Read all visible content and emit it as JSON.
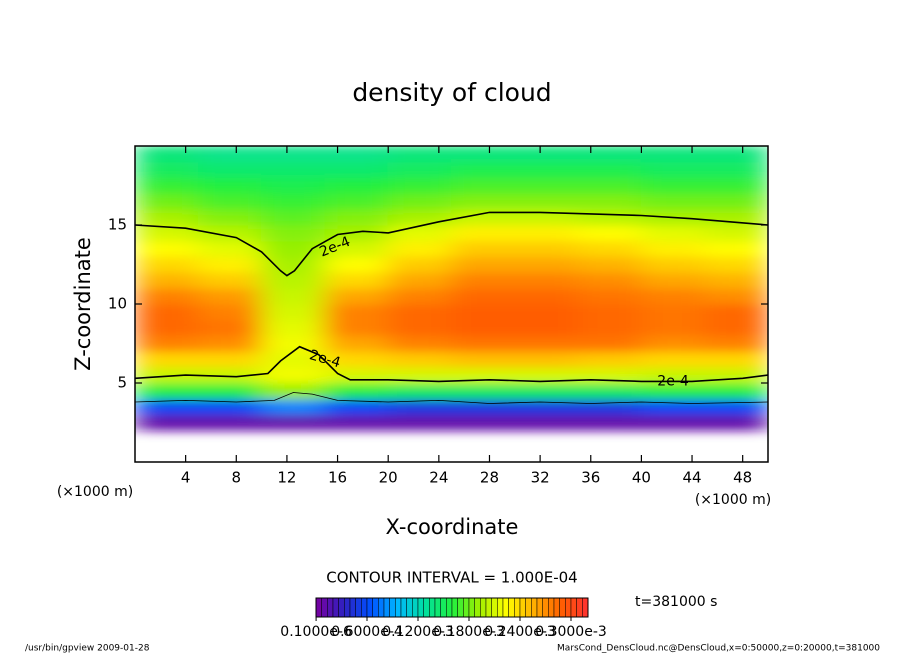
{
  "chart_data": {
    "type": "contour",
    "title": "density of cloud",
    "xlabel": "X-coordinate",
    "ylabel": "Z-coordinate",
    "x_unit": "(×1000 m)",
    "y_unit": "(×1000 m)",
    "xlim": [
      0,
      50
    ],
    "ylim": [
      0,
      20
    ],
    "xticks": [
      4,
      8,
      12,
      16,
      20,
      24,
      28,
      32,
      36,
      40,
      44,
      48
    ],
    "yticks": [
      5,
      10,
      15
    ],
    "field": {
      "x": [
        2.5,
        7.5,
        12.5,
        17.5,
        22.5,
        27.5,
        32.5,
        37.5,
        42.5,
        47.5
      ],
      "z": [
        0.5,
        1.5,
        2.5,
        3.5,
        4.5,
        5.5,
        6.5,
        7.5,
        8.5,
        9.5,
        10.5,
        11.5,
        12.5,
        13.5,
        14.5,
        15.5,
        16.5,
        17.5,
        18.5,
        19.5
      ],
      "values": [
        [
          null,
          null,
          null,
          null,
          null,
          null,
          null,
          null,
          null,
          null
        ],
        [
          null,
          null,
          null,
          null,
          null,
          null,
          null,
          null,
          null,
          null
        ],
        [
          1e-05,
          1e-05,
          1e-05,
          1e-05,
          1e-05,
          1e-05,
          1e-05,
          1e-05,
          1e-05,
          1e-05
        ],
        [
          6e-05,
          6e-05,
          8e-05,
          6e-05,
          5e-05,
          5e-05,
          5e-05,
          5e-05,
          6e-05,
          6e-05
        ],
        [
          0.00016,
          0.00016,
          0.00019,
          0.00016,
          0.00015,
          0.00015,
          0.00015,
          0.00015,
          0.00016,
          0.00016
        ],
        [
          0.000205,
          0.000205,
          0.00022,
          0.00021,
          0.00021,
          0.00021,
          0.00021,
          0.00021,
          0.000205,
          0.000205
        ],
        [
          0.00024,
          0.00024,
          0.000215,
          0.00024,
          0.000245,
          0.00025,
          0.00025,
          0.000245,
          0.00024,
          0.00024
        ],
        [
          0.000275,
          0.00027,
          0.00022,
          0.00026,
          0.000275,
          0.00028,
          0.00028,
          0.00028,
          0.00027,
          0.000275
        ],
        [
          0.000285,
          0.00028,
          0.000215,
          0.000275,
          0.000285,
          0.00029,
          0.00029,
          0.000285,
          0.00028,
          0.000285
        ],
        [
          0.000285,
          0.000275,
          0.00021,
          0.000275,
          0.000285,
          0.00029,
          0.00029,
          0.000285,
          0.00028,
          0.000285
        ],
        [
          0.000275,
          0.000265,
          0.000205,
          0.00026,
          0.000275,
          0.000285,
          0.000285,
          0.00028,
          0.000275,
          0.00027
        ],
        [
          0.000255,
          0.000245,
          0.0002,
          0.00024,
          0.00026,
          0.000275,
          0.000275,
          0.00027,
          0.00026,
          0.000255
        ],
        [
          0.00024,
          0.00023,
          0.000195,
          0.000225,
          0.000245,
          0.00026,
          0.00026,
          0.000255,
          0.000245,
          0.00024
        ],
        [
          0.000225,
          0.000215,
          0.00019,
          0.00021,
          0.00023,
          0.000245,
          0.000245,
          0.00024,
          0.00023,
          0.000225
        ],
        [
          0.00021,
          0.0002,
          0.000185,
          0.000195,
          0.000215,
          0.00023,
          0.00023,
          0.000225,
          0.000215,
          0.00021
        ],
        [
          0.000195,
          0.000185,
          0.000175,
          0.000185,
          0.000195,
          0.000205,
          0.000205,
          0.0002,
          0.000195,
          0.000195
        ],
        [
          0.00018,
          0.00017,
          0.000165,
          0.00017,
          0.00018,
          0.000185,
          0.000185,
          0.000185,
          0.00018,
          0.00018
        ],
        [
          0.000165,
          0.00016,
          0.000155,
          0.00016,
          0.000165,
          0.00017,
          0.00017,
          0.00017,
          0.000165,
          0.000165
        ],
        [
          0.00015,
          0.000145,
          0.000145,
          0.000145,
          0.00015,
          0.000155,
          0.000155,
          0.000155,
          0.00015,
          0.00015
        ],
        [
          0.00014,
          0.000135,
          0.000135,
          0.000135,
          0.00014,
          0.00014,
          0.00014,
          0.00014,
          0.00014,
          0.00014
        ]
      ]
    },
    "clim": [
      0,
      0.00032
    ],
    "colormap": [
      "#7a00a0",
      "#3020c0",
      "#0050ff",
      "#00b8ff",
      "#00e0a0",
      "#20f040",
      "#a0f000",
      "#ffff00",
      "#ffb000",
      "#ff6000",
      "#ff3030"
    ],
    "contours": [
      {
        "level": 0.0002,
        "x": [
          0,
          4,
          8,
          10,
          11.5,
          12,
          12.6,
          14,
          16,
          18,
          20,
          24,
          28,
          32,
          36,
          40,
          44,
          50
        ],
        "z": [
          15,
          14.8,
          14.2,
          13.3,
          12.1,
          11.8,
          12.1,
          13.5,
          14.4,
          14.6,
          14.5,
          15.2,
          15.8,
          15.8,
          15.7,
          15.6,
          15.4,
          15.0
        ]
      },
      {
        "level": 0.0002,
        "x": [
          0,
          4,
          8,
          10.5,
          11.5,
          13,
          14.5,
          16,
          17,
          20,
          24,
          28,
          32,
          36,
          40,
          44,
          48,
          50
        ],
        "z": [
          5.3,
          5.5,
          5.4,
          5.6,
          6.4,
          7.3,
          6.8,
          5.6,
          5.2,
          5.2,
          5.1,
          5.2,
          5.1,
          5.2,
          5.1,
          5.1,
          5.3,
          5.5
        ]
      },
      {
        "level": 0.0001,
        "x": [
          0,
          4,
          8,
          11,
          12.5,
          14,
          16,
          20,
          24,
          28,
          32,
          36,
          40,
          44,
          50
        ],
        "z": [
          3.8,
          3.9,
          3.8,
          3.9,
          4.4,
          4.3,
          3.9,
          3.8,
          3.9,
          3.7,
          3.8,
          3.7,
          3.8,
          3.7,
          3.8
        ]
      }
    ],
    "contour_labels": [
      {
        "text": "2e-4",
        "x": 15.8,
        "z": 13.6
      },
      {
        "text": "2e-4",
        "x": 15.0,
        "z": 6.5
      },
      {
        "text": "2e-4",
        "x": 42.5,
        "z": 5.1
      }
    ],
    "contour_interval": "CONTOUR INTERVAL = 1.000E-04",
    "time_label": "t=381000 s",
    "colorbar_ticks": [
      {
        "value": 1e-07,
        "label": "0.1000e-6"
      },
      {
        "value": 6e-05,
        "label": "0.6000e-4"
      },
      {
        "value": 0.00012,
        "label": "0.1200e-3"
      },
      {
        "value": 0.00018,
        "label": "0.1800e-3"
      },
      {
        "value": 0.00024,
        "label": "0.2400e-3"
      },
      {
        "value": 0.0003,
        "label": "0.3000e-3"
      }
    ],
    "footer_left": "/usr/bin/gpview  2009-01-28",
    "footer_right": "MarsCond_DensCloud.nc@DensCloud,x=0:50000,z=0:20000,t=381000"
  }
}
